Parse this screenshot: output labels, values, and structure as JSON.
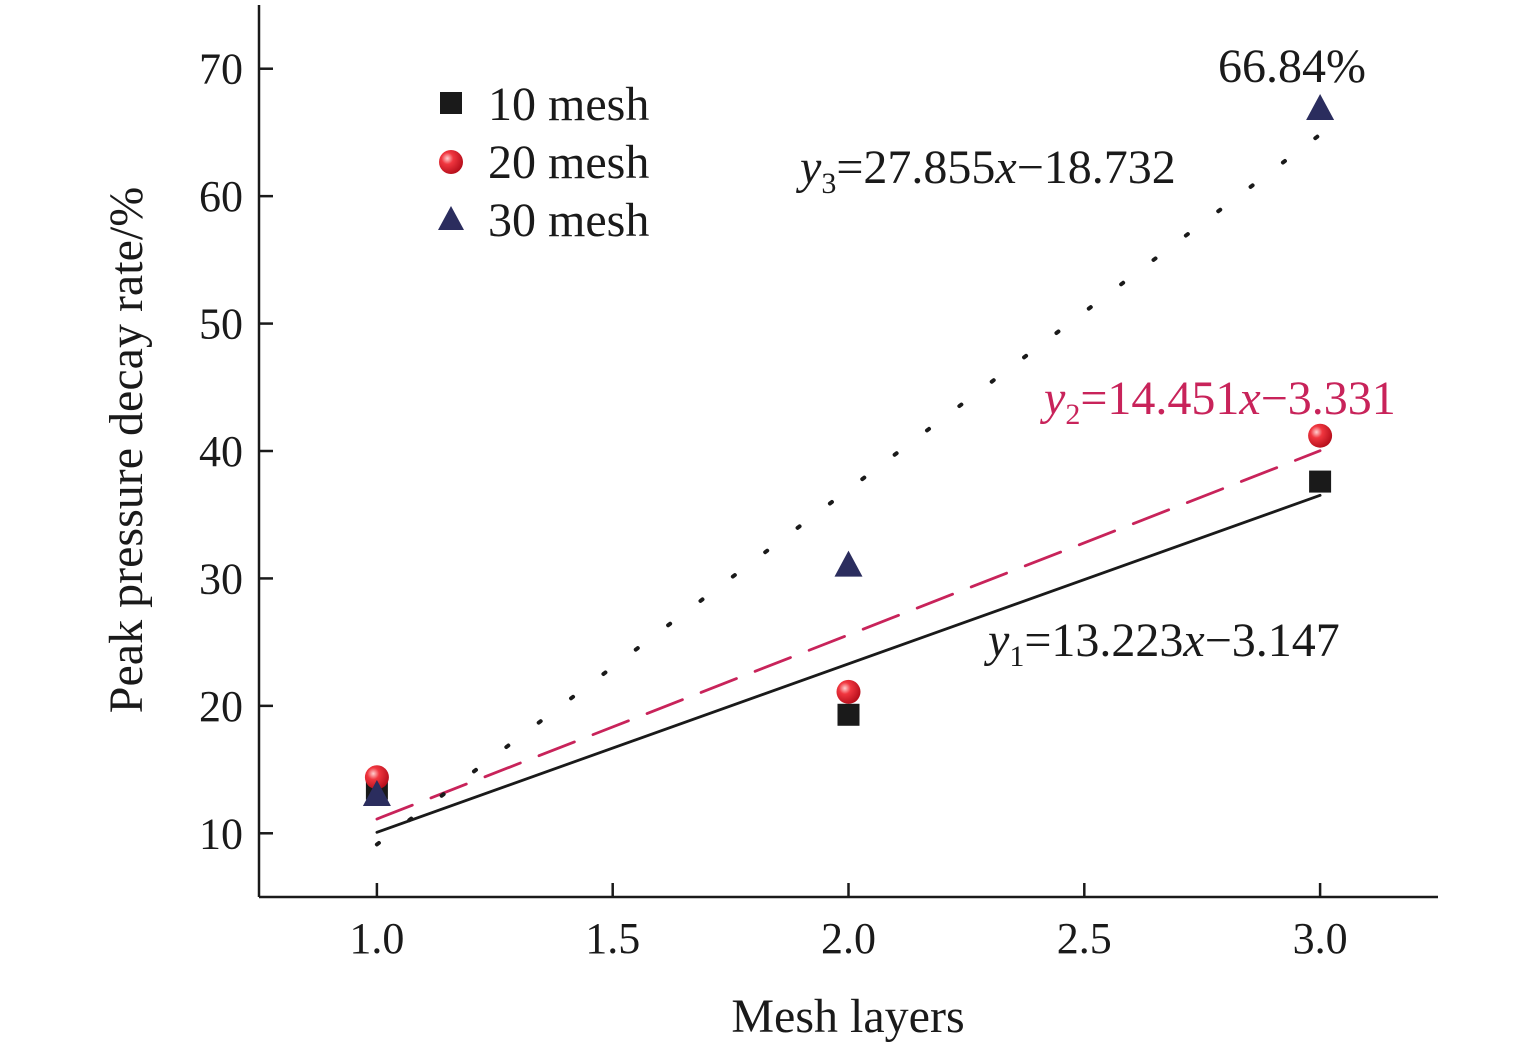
{
  "chart_data": {
    "type": "scatter",
    "title": "",
    "xlabel": "Mesh layers",
    "ylabel": "Peak pressure decay rate/%",
    "xlim": [
      0.75,
      3.25
    ],
    "ylim": [
      5,
      75
    ],
    "xticks": [
      1.0,
      1.5,
      2.0,
      2.5,
      3.0
    ],
    "xtick_labels": [
      "1.0",
      "1.5",
      "2.0",
      "2.5",
      "3.0"
    ],
    "yticks": [
      10,
      20,
      30,
      40,
      50,
      60,
      70
    ],
    "ytick_labels": [
      "10",
      "20",
      "30",
      "40",
      "50",
      "60",
      "70"
    ],
    "grid": false,
    "legend_position": "top-left",
    "series": [
      {
        "name": "10 mesh",
        "marker": "square",
        "color": "#1a1a1a",
        "x": [
          1,
          2,
          3
        ],
        "y": [
          13.5,
          19.3,
          37.6
        ],
        "fit": {
          "slope": 13.223,
          "intercept": -3.147,
          "style": "solid",
          "color": "#1a1a1a"
        }
      },
      {
        "name": "20 mesh",
        "marker": "circle",
        "color": "#e0202e",
        "x": [
          1,
          2,
          3
        ],
        "y": [
          14.4,
          21.1,
          41.2
        ],
        "fit": {
          "slope": 14.451,
          "intercept": -3.331,
          "style": "dashed",
          "color": "#c8235a"
        }
      },
      {
        "name": "30 mesh",
        "marker": "triangle",
        "color": "#2b2d5e",
        "x": [
          1,
          2,
          3
        ],
        "y": [
          13.0,
          31.0,
          66.84
        ],
        "fit": {
          "slope": 27.855,
          "intercept": -18.732,
          "style": "dotted",
          "color": "#1a1a1a"
        }
      }
    ],
    "annotations": {
      "peak": {
        "text": "66.84%"
      },
      "eq1": {
        "lhs_var": "y",
        "lhs_sub": "1",
        "coef": "=13.223",
        "xvar": "x",
        "rest": "−3.147",
        "color": "#1a1a1a"
      },
      "eq2": {
        "lhs_var": "y",
        "lhs_sub": "2",
        "coef": "=14.451",
        "xvar": "x",
        "rest": "−3.331",
        "color": "#c8235a"
      },
      "eq3": {
        "lhs_var": "y",
        "lhs_sub": "3",
        "coef": "=27.855",
        "xvar": "x",
        "rest": "−18.732",
        "color": "#1a1a1a"
      }
    }
  }
}
